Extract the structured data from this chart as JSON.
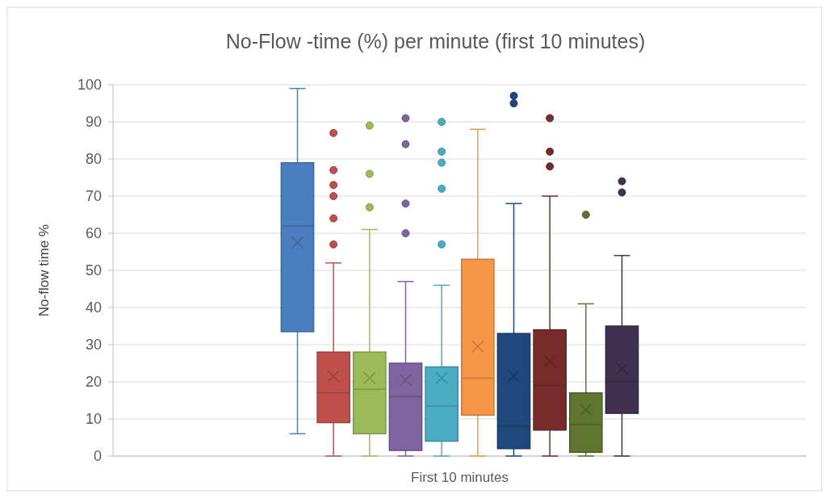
{
  "chart_data": {
    "type": "box",
    "title": "No-Flow -time (%) per minute (first 10 minutes)",
    "ylabel": "No-flow time %",
    "categories": [
      "First 10 minutes"
    ],
    "ylim": [
      0,
      100
    ],
    "yticks": [
      0,
      10,
      20,
      30,
      40,
      50,
      60,
      70,
      80,
      90,
      100
    ],
    "grid": "y",
    "series": [
      {
        "color": "#4a7ebf",
        "boxes": [
          {
            "low": 6,
            "q1": 33.5,
            "median": 62,
            "q3": 79,
            "high": 99,
            "mean": 57.5
          }
        ]
      },
      {
        "color": "#c0504d",
        "boxes": [
          {
            "low": 0,
            "q1": 9,
            "median": 17,
            "q3": 28,
            "high": 52,
            "mean": 21.5,
            "outliers": [
              57,
              64,
              70,
              73,
              77,
              87
            ]
          }
        ]
      },
      {
        "color": "#9bbb59",
        "boxes": [
          {
            "low": 0,
            "q1": 6,
            "median": 18,
            "q3": 28,
            "high": 61,
            "mean": 21,
            "outliers": [
              67,
              76,
              89
            ]
          }
        ]
      },
      {
        "color": "#8064a2",
        "boxes": [
          {
            "low": 0,
            "q1": 1.5,
            "median": 16,
            "q3": 25,
            "high": 47,
            "mean": 20.5,
            "outliers": [
              60,
              68,
              84,
              91
            ]
          }
        ]
      },
      {
        "color": "#4bacc6",
        "boxes": [
          {
            "low": 0,
            "q1": 4,
            "median": 13.5,
            "q3": 24,
            "high": 46,
            "mean": 21,
            "outliers": [
              57,
              72,
              79,
              82,
              90
            ]
          }
        ]
      },
      {
        "color": "#f79646",
        "boxes": [
          {
            "low": 0,
            "q1": 11,
            "median": 21,
            "q3": 53,
            "high": 88,
            "mean": 29.5
          }
        ]
      },
      {
        "color": "#1f497d",
        "boxes": [
          {
            "low": 0,
            "q1": 2,
            "median": 8,
            "q3": 33,
            "high": 68,
            "mean": 21.5,
            "outliers": [
              95,
              97
            ]
          }
        ]
      },
      {
        "color": "#772c2a",
        "boxes": [
          {
            "low": 0,
            "q1": 7,
            "median": 19,
            "q3": 34,
            "high": 70,
            "mean": 25.5,
            "outliers": [
              78,
              82,
              91
            ]
          }
        ]
      },
      {
        "color": "#5f7530",
        "boxes": [
          {
            "low": 0,
            "q1": 1,
            "median": 8.5,
            "q3": 17,
            "high": 41,
            "mean": 12.5,
            "outliers": [
              65
            ]
          }
        ]
      },
      {
        "color": "#403152",
        "boxes": [
          {
            "low": 0,
            "q1": 11.5,
            "median": 20,
            "q3": 35,
            "high": 54,
            "mean": 23.5,
            "outliers": [
              71,
              74
            ]
          }
        ]
      }
    ]
  }
}
